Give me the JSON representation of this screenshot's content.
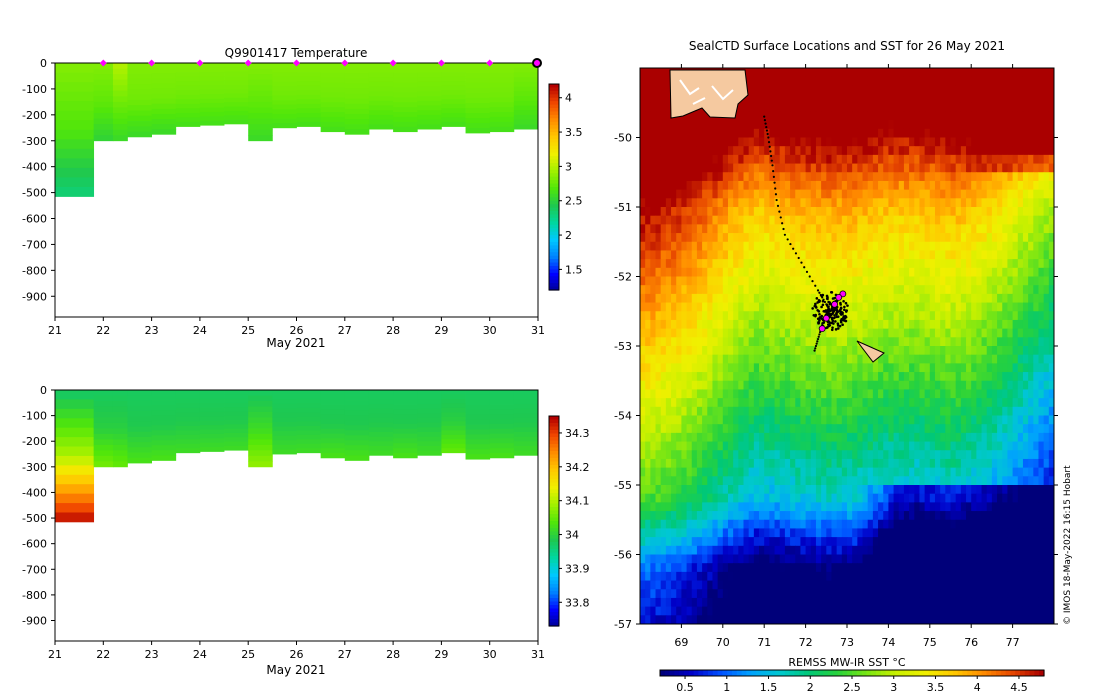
{
  "colors": {
    "temp_scale": [
      "#00008f",
      "#0000ff",
      "#0080ff",
      "#00c8ff",
      "#00d7a0",
      "#1ec850",
      "#50e60a",
      "#a0f000",
      "#f0f000",
      "#ffc800",
      "#ff8c00",
      "#f04600",
      "#b40000"
    ],
    "sst_scale": [
      "#00007a",
      "#0000c8",
      "#0050ff",
      "#00a0ff",
      "#00c8d2",
      "#00c878",
      "#28d23c",
      "#78e614",
      "#c8f000",
      "#f0f000",
      "#ffc800",
      "#ff8c00",
      "#e64600",
      "#aa0000"
    ],
    "marker": "#ff00ff",
    "land": "#f5c9a0"
  },
  "chart_data": [
    {
      "type": "heatmap",
      "name": "temperature-profile",
      "title": "Q9901417  Temperature",
      "xlabel": "May 2021",
      "ylabel": "",
      "x_ticks": [
        "21",
        "22",
        "23",
        "24",
        "25",
        "26",
        "27",
        "28",
        "29",
        "30",
        "31"
      ],
      "xlim": [
        21,
        31
      ],
      "y_ticks": [
        "0",
        "-100",
        "-200",
        "-300",
        "-400",
        "-500",
        "-600",
        "-700",
        "-800",
        "-900"
      ],
      "ylim": [
        -980,
        0
      ],
      "colorbar_ticks": [
        "1.5",
        "2",
        "2.5",
        "3",
        "3.5",
        "4"
      ],
      "colorbar_range": [
        1.2,
        4.2
      ],
      "profile_markers_day": [
        22,
        23,
        24,
        25,
        26,
        27,
        28,
        29,
        30,
        31
      ],
      "profiles": [
        {
          "day": 21.0,
          "depth": -515,
          "surface": 2.85,
          "mid": 2.7,
          "deep": 2.35
        },
        {
          "day": 21.8,
          "depth": -300,
          "surface": 2.85,
          "mid": 2.75,
          "deep": 2.55
        },
        {
          "day": 22.2,
          "depth": -300,
          "surface": 3.0,
          "mid": 2.8,
          "deep": 2.6
        },
        {
          "day": 22.5,
          "depth": -285,
          "surface": 2.85,
          "mid": 2.8,
          "deep": 2.6
        },
        {
          "day": 23.0,
          "depth": -275,
          "surface": 2.85,
          "mid": 2.8,
          "deep": 2.6
        },
        {
          "day": 23.5,
          "depth": -245,
          "surface": 2.85,
          "mid": 2.8,
          "deep": 2.65
        },
        {
          "day": 24.0,
          "depth": -240,
          "surface": 2.85,
          "mid": 2.8,
          "deep": 2.65
        },
        {
          "day": 24.5,
          "depth": -235,
          "surface": 2.85,
          "mid": 2.8,
          "deep": 2.65
        },
        {
          "day": 25.0,
          "depth": -300,
          "surface": 2.85,
          "mid": 2.75,
          "deep": 2.6
        },
        {
          "day": 25.5,
          "depth": -250,
          "surface": 2.85,
          "mid": 2.8,
          "deep": 2.65
        },
        {
          "day": 26.0,
          "depth": -245,
          "surface": 2.85,
          "mid": 2.8,
          "deep": 2.65
        },
        {
          "day": 26.5,
          "depth": -265,
          "surface": 2.85,
          "mid": 2.8,
          "deep": 2.65
        },
        {
          "day": 27.0,
          "depth": -275,
          "surface": 2.85,
          "mid": 2.8,
          "deep": 2.65
        },
        {
          "day": 27.5,
          "depth": -255,
          "surface": 2.85,
          "mid": 2.8,
          "deep": 2.65
        },
        {
          "day": 28.0,
          "depth": -265,
          "surface": 2.85,
          "mid": 2.8,
          "deep": 2.65
        },
        {
          "day": 28.5,
          "depth": -255,
          "surface": 2.85,
          "mid": 2.8,
          "deep": 2.65
        },
        {
          "day": 29.0,
          "depth": -245,
          "surface": 2.85,
          "mid": 2.8,
          "deep": 2.65
        },
        {
          "day": 29.5,
          "depth": -270,
          "surface": 2.85,
          "mid": 2.8,
          "deep": 2.65
        },
        {
          "day": 30.0,
          "depth": -265,
          "surface": 2.85,
          "mid": 2.8,
          "deep": 2.65
        },
        {
          "day": 30.5,
          "depth": -255,
          "surface": 2.85,
          "mid": 2.75,
          "deep": 2.6
        }
      ]
    },
    {
      "type": "heatmap",
      "name": "salinity-profile",
      "title": "",
      "xlabel": "May 2021",
      "ylabel": "",
      "x_ticks": [
        "21",
        "22",
        "23",
        "24",
        "25",
        "26",
        "27",
        "28",
        "29",
        "30",
        "31"
      ],
      "xlim": [
        21,
        31
      ],
      "y_ticks": [
        "0",
        "-100",
        "-200",
        "-300",
        "-400",
        "-500",
        "-600",
        "-700",
        "-800",
        "-900"
      ],
      "ylim": [
        -980,
        0
      ],
      "colorbar_ticks": [
        "33.8",
        "33.9",
        "34",
        "34.1",
        "34.2",
        "34.3"
      ],
      "colorbar_range": [
        33.73,
        34.35
      ],
      "profiles": [
        {
          "day": 21.0,
          "depth": -515,
          "surface": 33.98,
          "mid": 34.1,
          "deep": 34.33
        },
        {
          "day": 21.8,
          "depth": -300,
          "surface": 33.98,
          "mid": 34.0,
          "deep": 34.06
        },
        {
          "day": 22.2,
          "depth": -300,
          "surface": 33.98,
          "mid": 34.0,
          "deep": 34.05
        },
        {
          "day": 22.5,
          "depth": -285,
          "surface": 33.98,
          "mid": 33.99,
          "deep": 34.03
        },
        {
          "day": 23.0,
          "depth": -275,
          "surface": 33.98,
          "mid": 33.99,
          "deep": 34.03
        },
        {
          "day": 23.5,
          "depth": -245,
          "surface": 33.98,
          "mid": 33.99,
          "deep": 34.02
        },
        {
          "day": 24.0,
          "depth": -240,
          "surface": 33.98,
          "mid": 33.99,
          "deep": 34.02
        },
        {
          "day": 24.5,
          "depth": -235,
          "surface": 33.98,
          "mid": 33.99,
          "deep": 34.02
        },
        {
          "day": 25.0,
          "depth": -300,
          "surface": 33.98,
          "mid": 34.02,
          "deep": 34.08
        },
        {
          "day": 25.5,
          "depth": -250,
          "surface": 33.98,
          "mid": 33.99,
          "deep": 34.02
        },
        {
          "day": 26.0,
          "depth": -245,
          "surface": 33.98,
          "mid": 33.99,
          "deep": 34.02
        },
        {
          "day": 26.5,
          "depth": -265,
          "surface": 33.98,
          "mid": 33.99,
          "deep": 34.03
        },
        {
          "day": 27.0,
          "depth": -275,
          "surface": 33.98,
          "mid": 33.99,
          "deep": 34.03
        },
        {
          "day": 27.5,
          "depth": -255,
          "surface": 33.98,
          "mid": 33.99,
          "deep": 34.02
        },
        {
          "day": 28.0,
          "depth": -265,
          "surface": 33.98,
          "mid": 33.99,
          "deep": 34.03
        },
        {
          "day": 28.5,
          "depth": -255,
          "surface": 33.98,
          "mid": 33.99,
          "deep": 34.02
        },
        {
          "day": 29.0,
          "depth": -245,
          "surface": 33.98,
          "mid": 34.0,
          "deep": 34.05
        },
        {
          "day": 29.5,
          "depth": -270,
          "surface": 33.98,
          "mid": 33.99,
          "deep": 34.03
        },
        {
          "day": 30.0,
          "depth": -265,
          "surface": 33.98,
          "mid": 33.99,
          "deep": 34.03
        },
        {
          "day": 30.5,
          "depth": -255,
          "surface": 33.98,
          "mid": 33.99,
          "deep": 34.02
        }
      ]
    },
    {
      "type": "heatmap",
      "name": "sst-map",
      "title": "SealCTD Surface Locations and SST for 26 May 2021",
      "xlabel": "",
      "ylabel": "",
      "x_ticks": [
        "69",
        "70",
        "71",
        "72",
        "73",
        "74",
        "75",
        "76",
        "77"
      ],
      "xlim": [
        68.0,
        78.0
      ],
      "y_ticks": [
        "-50",
        "-51",
        "-52",
        "-53",
        "-54",
        "-55",
        "-56",
        "-57"
      ],
      "ylim": [
        -57.0,
        -49.0
      ],
      "colorbar_label": "REMSS MW-IR SST °C",
      "colorbar_ticks": [
        "0.5",
        "1",
        "1.5",
        "2",
        "2.5",
        "3",
        "3.5",
        "4",
        "4.5"
      ],
      "colorbar_range": [
        0.2,
        4.8
      ],
      "credit": "© IMOS 18-May-2022 16:15 Hobart",
      "track": [
        [
          71.0,
          -49.7
        ],
        [
          71.1,
          -50.0
        ],
        [
          71.2,
          -50.4
        ],
        [
          71.3,
          -50.9
        ],
        [
          71.5,
          -51.4
        ],
        [
          71.9,
          -51.8
        ],
        [
          72.3,
          -52.2
        ],
        [
          72.5,
          -52.4
        ],
        [
          72.6,
          -52.5
        ],
        [
          72.4,
          -52.7
        ],
        [
          72.3,
          -52.9
        ],
        [
          72.2,
          -53.1
        ]
      ],
      "cluster_center": [
        72.6,
        -52.5
      ],
      "surface_locations": [
        [
          72.9,
          -52.25
        ],
        [
          72.8,
          -52.3
        ],
        [
          72.5,
          -52.6
        ],
        [
          72.4,
          -52.75
        ],
        [
          72.7,
          -52.4
        ]
      ]
    }
  ]
}
